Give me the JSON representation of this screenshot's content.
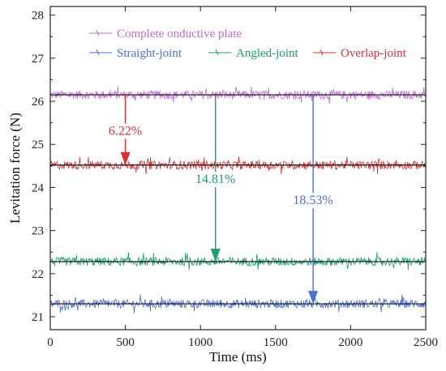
{
  "chart_data": {
    "type": "line",
    "xlabel": "Time (ms)",
    "ylabel": "Levitation force (N)",
    "xlim": [
      0,
      2500
    ],
    "ylim": [
      20.7,
      28.2
    ],
    "xticks": [
      0,
      500,
      1000,
      1500,
      2000,
      2500
    ],
    "yticks": [
      21,
      22,
      23,
      24,
      25,
      26,
      27,
      28
    ],
    "grid": false,
    "legend_placement": "top",
    "series": [
      {
        "name": "Complete onductive plate",
        "mean": 26.15,
        "amplitude": 0.1,
        "color": "#c36ad8"
      },
      {
        "name": "Straight-joint",
        "mean": 21.3,
        "amplitude": 0.1,
        "color": "#4a6fe0"
      },
      {
        "name": "Angled-joint",
        "mean": 22.28,
        "amplitude": 0.1,
        "color": "#17a06a"
      },
      {
        "name": "Overlap-joint",
        "mean": 24.52,
        "amplitude": 0.1,
        "color": "#e0302e"
      }
    ],
    "annotations": [
      {
        "text": "6.22%",
        "x": 500,
        "from_y": 26.15,
        "to_y": 24.52,
        "color": "#e0302e"
      },
      {
        "text": "14.81%",
        "x": 1100,
        "from_y": 26.15,
        "to_y": 22.28,
        "color": "#17a06a"
      },
      {
        "text": "18.53%",
        "x": 1750,
        "from_y": 26.15,
        "to_y": 21.3,
        "color": "#4a6fe0"
      }
    ]
  }
}
